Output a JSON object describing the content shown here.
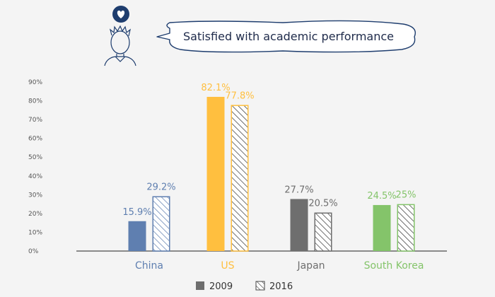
{
  "chart_data": {
    "type": "bar",
    "title": "Satisfied with academic performance",
    "categories": [
      "China",
      "US",
      "Japan",
      "South Korea"
    ],
    "category_colors": [
      "#5f7fb0",
      "#ffbf3f",
      "#6e6e6e",
      "#84c46a"
    ],
    "series": [
      {
        "name": "2009",
        "values": [
          15.9,
          82.1,
          27.7,
          24.5
        ],
        "value_labels": [
          "15.9%",
          "82.1%",
          "27.7%",
          "24.5%"
        ],
        "style": "solid"
      },
      {
        "name": "2016",
        "values": [
          29.2,
          77.8,
          20.5,
          25.0
        ],
        "value_labels": [
          "29.2%",
          "77.8%",
          "20.5%",
          "25%"
        ],
        "style": "hatched"
      }
    ],
    "ylim": [
      0,
      90
    ],
    "yticks": [
      0,
      10,
      20,
      30,
      40,
      50,
      60,
      70,
      80,
      90
    ],
    "ytick_labels": [
      "0%",
      "10%",
      "20%",
      "30%",
      "40%",
      "50%",
      "60%",
      "70%",
      "80%",
      "90%"
    ],
    "grid": false,
    "legend_position": "bottom",
    "icons": [
      "heart-icon",
      "student-avatar-icon",
      "speech-bubble"
    ]
  }
}
